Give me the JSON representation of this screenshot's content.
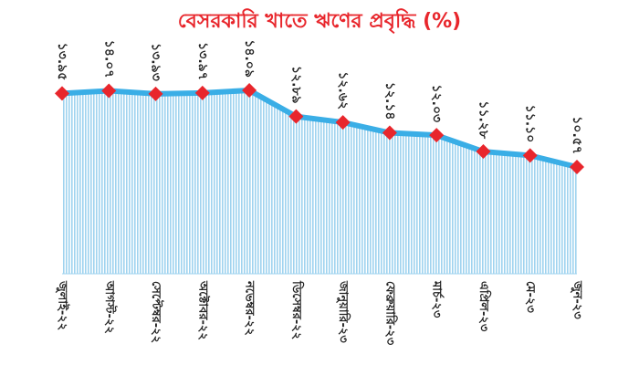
{
  "chart_data": {
    "type": "area",
    "title": "বেসরকারি খাতে ঋণের প্রবৃদ্ধি (%)",
    "categories": [
      "জুলাই-২২",
      "আগস্ট-২২",
      "সেপ্টেম্বর-২২",
      "অক্টোবর-২২",
      "নভেম্বর-২২",
      "ডিসেম্বর-২২",
      "জানুয়ারি-২৩",
      "ফেব্রুয়ারি-২৩",
      "মার্চ-২৩",
      "এপ্রিল-২৩",
      "মে-২৩",
      "জুন-২৩"
    ],
    "values": [
      13.95,
      14.07,
      13.93,
      13.97,
      14.09,
      12.89,
      12.62,
      12.14,
      12.03,
      11.28,
      11.1,
      10.57
    ],
    "value_labels": [
      "১৩.৯৫",
      "১৪.০৭",
      "১৩.৯৩",
      "১৩.৯৭",
      "১৪.০৯",
      "১২.৮৯",
      "১২.৬২",
      "১২.১৪",
      "১২.০৩",
      "১১.২৮",
      "১১.১০",
      "১০.৫৭"
    ],
    "color": "#3aaee6",
    "marker_color": "#e8262c"
  }
}
